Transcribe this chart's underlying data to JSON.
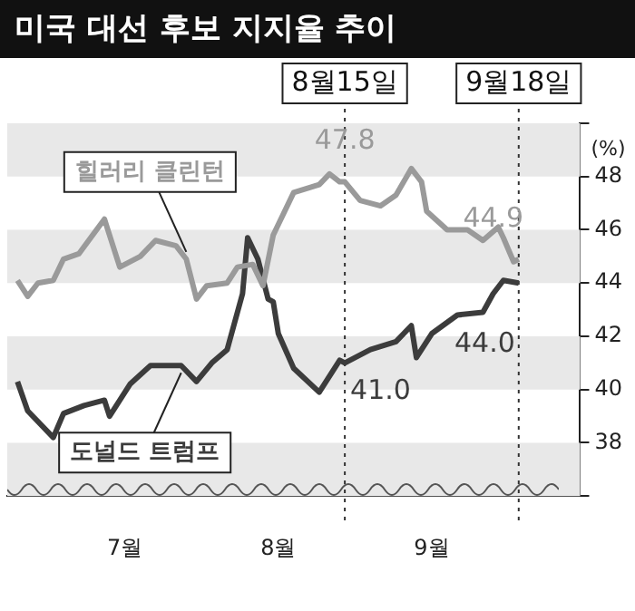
{
  "chart_data": {
    "type": "line",
    "title": "미국 대선 후보 지지율 추이",
    "ylabel": "(%)",
    "xlim": [
      "--06-10",
      "--09-30"
    ],
    "xticks": [
      {
        "value": "--07-03",
        "label": "7월"
      },
      {
        "value": "--08-02",
        "label": "8월"
      },
      {
        "value": "--09-01",
        "label": "9월"
      }
    ],
    "ylim": [
      36,
      50
    ],
    "yticks": [
      {
        "value": 36,
        "label": null
      },
      38,
      40,
      42,
      44,
      46,
      48,
      {
        "value": 50,
        "label": null
      }
    ],
    "grid": false,
    "legend": false,
    "marker": "none",
    "line_style": "solid",
    "series": [
      {
        "name": "힐러리 클린턴",
        "color": "#9a9a9a",
        "x": [
          "--06-12",
          "--06-14",
          "--06-16",
          "--06-19",
          "--06-21",
          "--06-24",
          "--06-29",
          "--07-02",
          "--07-06",
          "--07-09",
          "--07-13",
          "--07-15",
          "--07-17",
          "--07-19",
          "--07-23",
          "--07-25",
          "--07-28",
          "--07-30",
          "--08-01",
          "--08-05",
          "--08-10",
          "--08-12",
          "--08-14",
          "--08-15",
          "--08-18",
          "--08-22",
          "--08-25",
          "--08-28",
          "--08-30",
          "--08-31",
          "--09-04",
          "--09-08",
          "--09-11",
          "--09-14",
          "--09-15",
          "--09-17",
          "--09-18"
        ],
        "values": [
          44.1,
          43.5,
          44.0,
          44.1,
          44.9,
          45.1,
          46.4,
          44.6,
          45.0,
          45.6,
          45.4,
          44.9,
          43.4,
          43.9,
          44.0,
          44.6,
          44.7,
          43.9,
          45.8,
          47.4,
          47.7,
          48.1,
          47.8,
          47.8,
          47.1,
          46.9,
          47.3,
          48.3,
          47.8,
          46.7,
          46.0,
          46.0,
          45.6,
          46.1,
          45.7,
          44.8,
          44.9
        ]
      },
      {
        "name": "도널드 트럼프",
        "color": "#3c3c3c",
        "x": [
          "--06-12",
          "--06-14",
          "--06-19",
          "--06-21",
          "--06-25",
          "--06-29",
          "--06-30",
          "--07-04",
          "--07-08",
          "--07-14",
          "--07-17",
          "--07-20",
          "--07-23",
          "--07-26",
          "--07-27",
          "--07-29",
          "--07-31",
          "--08-01",
          "--08-02",
          "--08-05",
          "--08-10",
          "--08-14",
          "--08-15",
          "--08-20",
          "--08-25",
          "--08-28",
          "--08-29",
          "--09-01",
          "--09-06",
          "--09-11",
          "--09-13",
          "--09-15",
          "--09-18"
        ],
        "values": [
          40.3,
          39.2,
          38.2,
          39.1,
          39.4,
          39.6,
          39.0,
          40.2,
          40.9,
          40.9,
          40.3,
          41.0,
          41.5,
          43.6,
          45.7,
          44.9,
          43.4,
          43.3,
          42.1,
          40.8,
          39.9,
          41.1,
          41.0,
          41.5,
          41.8,
          42.4,
          41.2,
          42.1,
          42.8,
          42.9,
          43.6,
          44.1,
          44.0
        ]
      }
    ],
    "bands": [
      {
        "axis": "y",
        "from": 36,
        "to": 38,
        "color": "#e8e8e8"
      },
      {
        "axis": "y",
        "from": 40,
        "to": 42,
        "color": "#e8e8e8"
      },
      {
        "axis": "y",
        "from": 44,
        "to": 46,
        "color": "#e8e8e8"
      },
      {
        "axis": "y",
        "from": 48,
        "to": 50,
        "color": "#e8e8e8"
      }
    ],
    "ref_lines": [
      {
        "axis": "x",
        "value": "--08-15",
        "label": "8월15일",
        "line_style": "dotted"
      },
      {
        "axis": "x",
        "value": "--09-18",
        "label": "9월18일",
        "line_style": "dotted"
      }
    ],
    "annotations": [
      {
        "text": "47.8",
        "x": "--08-15",
        "y": 47.8
      },
      {
        "text": "44.9",
        "x": "--09-18",
        "y": 44.9
      },
      {
        "text": "41.0",
        "x": "--08-15",
        "y": 41.0
      },
      {
        "text": "44.0",
        "x": "--09-18",
        "y": 44.0
      }
    ]
  }
}
